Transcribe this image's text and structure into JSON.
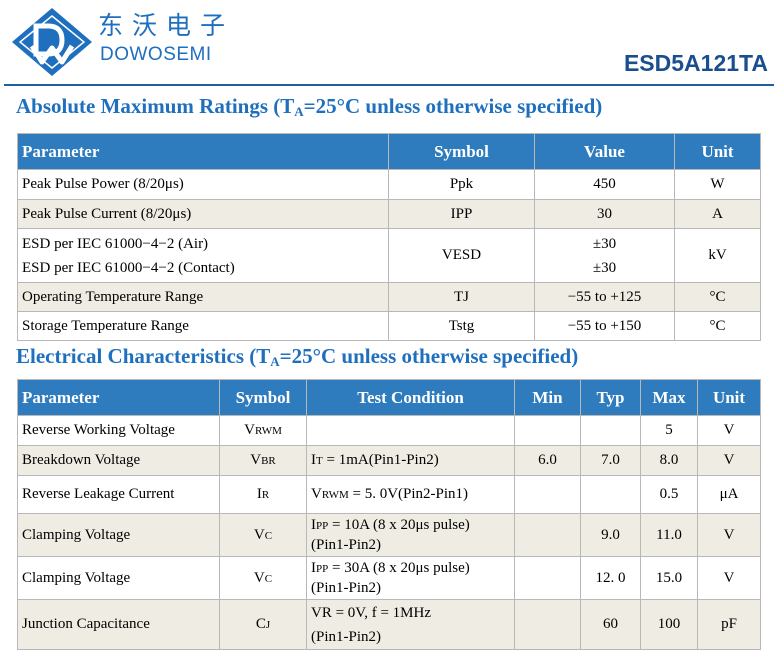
{
  "header": {
    "brand_cn": "东沃电子",
    "brand_en": "DOWOSEMI",
    "part_number": "ESD5A121TA",
    "logo_color": "#1f6fbf"
  },
  "amr": {
    "title_pre": "Absolute Maximum Ratings (T",
    "title_sub": "A",
    "title_post": "=25°C unless otherwise specified)",
    "headers": {
      "parameter": "Parameter",
      "symbol": "Symbol",
      "value": "Value",
      "unit": "Unit"
    },
    "rows": [
      {
        "parameter": "Peak Pulse Power (8/20μs)",
        "symbol": "Ppk",
        "value": "450",
        "unit": "W"
      },
      {
        "parameter": "Peak Pulse Current (8/20μs)",
        "symbol": "IPP",
        "value": "30",
        "unit": "A"
      },
      {
        "parameter_1": "ESD per IEC 61000−4−2 (Air)",
        "parameter_2": "ESD per IEC 61000−4−2 (Contact)",
        "symbol": "VESD",
        "value_1": "±30",
        "value_2": "±30",
        "unit": "kV"
      },
      {
        "parameter": "Operating Temperature Range",
        "symbol": "TJ",
        "value": "−55 to +125",
        "unit": "°C"
      },
      {
        "parameter": "Storage Temperature Range",
        "symbol": "Tstg",
        "value": "−55 to +150",
        "unit": "°C"
      }
    ]
  },
  "ec": {
    "title_pre": "Electrical Characteristics (T",
    "title_sub": "A",
    "title_post": "=25°C unless otherwise specified)",
    "headers": {
      "parameter": "Parameter",
      "symbol": "Symbol",
      "test_condition": "Test Condition",
      "min": "Min",
      "typ": "Typ",
      "max": "Max",
      "unit": "Unit"
    },
    "rows": [
      {
        "parameter": "Reverse Working Voltage",
        "symbol_main": "V",
        "symbol_sub": "RWM",
        "test_condition": "",
        "min": "",
        "typ": "",
        "max": "5",
        "unit": "V"
      },
      {
        "parameter": "Breakdown Voltage",
        "symbol_main": "V",
        "symbol_sub": "BR",
        "tc_main": "I",
        "tc_sub": "T",
        "tc_rest": " = 1mA(Pin1-Pin2)",
        "min": "6.0",
        "typ": "7.0",
        "max": "8.0",
        "unit": "V"
      },
      {
        "parameter": "Reverse Leakage Current",
        "symbol_main": "I",
        "symbol_sub": "R",
        "tc_main": "V",
        "tc_sub": "RWM",
        "tc_rest": " = 5. 0V(Pin2-Pin1)",
        "min": "",
        "typ": "",
        "max": "0.5",
        "unit": "μA"
      },
      {
        "parameter": "Clamping Voltage",
        "symbol_main": "V",
        "symbol_sub": "C",
        "tc_main": "I",
        "tc_sub": "PP",
        "tc_rest": " = 10A (8 x 20μs pulse)",
        "tc_line2": "(Pin1-Pin2)",
        "min": "",
        "typ": "9.0",
        "max": "11.0",
        "unit": "V"
      },
      {
        "parameter": "Clamping Voltage",
        "symbol_main": "V",
        "symbol_sub": "C",
        "tc_main": "I",
        "tc_sub": "PP",
        "tc_rest": " = 30A (8 x 20μs pulse)",
        "tc_line2": "(Pin1-Pin2)",
        "min": "",
        "typ": "12. 0",
        "max": "15.0",
        "unit": "V"
      },
      {
        "parameter": "Junction Capacitance",
        "symbol_main": "C",
        "symbol_sub": "J",
        "tc_line1": "VR = 0V, f = 1MHz",
        "tc_line2": "(Pin1-Pin2)",
        "min": "",
        "typ": "60",
        "max": "100",
        "unit": "pF"
      }
    ]
  }
}
